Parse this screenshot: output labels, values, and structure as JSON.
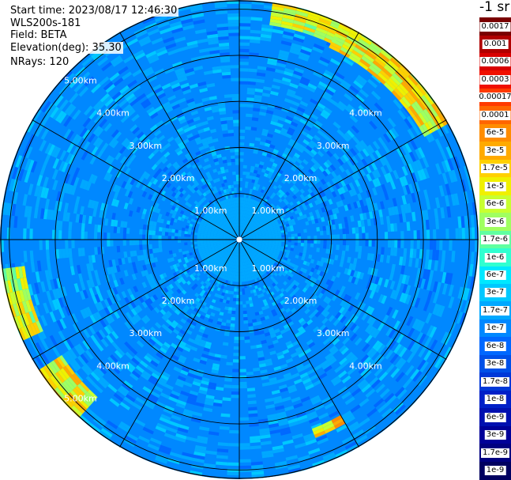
{
  "header": {
    "start_time": "Start time: 2023/08/17 12:46:30",
    "instrument": "WLS200s-181",
    "field": "Field: BETA",
    "elevation": "Elevation(deg): 35.30",
    "nrays": "NRays: 120"
  },
  "chart_data": {
    "type": "heatmap",
    "projection": "polar-ppi",
    "field": "BETA",
    "elevation_deg": 35.3,
    "n_rays": 120,
    "range_max_km": 5.2,
    "range_rings_km": [
      1,
      2,
      3,
      4,
      5
    ],
    "ring_labels_inner": [
      "1.00km",
      "2.00km",
      "3.00km",
      "4.00km",
      "5.00km"
    ],
    "ring_labels_right": [
      "1.00km",
      "2.00km",
      "3.00km",
      "4.00km"
    ],
    "spokes_deg": [
      0,
      30,
      60,
      90,
      120,
      150,
      180,
      210,
      240,
      270,
      300,
      330
    ],
    "colorbar": {
      "unit_label": "-1 sr",
      "labels": [
        "0.0017",
        "0.001",
        "0.0006",
        "0.0003",
        "0.00017",
        "0.0001",
        "6e-5",
        "3e-5",
        "1.7e-5",
        "1e-5",
        "6e-6",
        "3e-6",
        "1.7e-6",
        "1e-6",
        "6e-7",
        "3e-7",
        "1.7e-7",
        "1e-7",
        "6e-8",
        "3e-8",
        "1.7e-8",
        "1e-8",
        "6e-9",
        "3e-9",
        "1.7e-9",
        "1e-9"
      ],
      "colors": [
        "#7a0000",
        "#b00000",
        "#d80000",
        "#f01000",
        "#ff3a00",
        "#ff6600",
        "#ff8c00",
        "#ffaa00",
        "#ffd000",
        "#f0f000",
        "#c8ff30",
        "#a0ff60",
        "#60ffa0",
        "#30ffd0",
        "#00e8ff",
        "#00c8ff",
        "#00a8ff",
        "#0088ff",
        "#0068ff",
        "#0050e8",
        "#0038d8",
        "#0020c8",
        "#0010b0",
        "#000098",
        "#000080",
        "#000060"
      ]
    },
    "background_level": "1e-7",
    "near_range_level": "1.7e-7",
    "enhanced_sectors": [
      {
        "azimuth_deg": [
          8,
          25
        ],
        "range_km": [
          4.7,
          5.2
        ],
        "level": "6e-6"
      },
      {
        "azimuth_deg": [
          25,
          60
        ],
        "range_km": [
          4.6,
          5.2
        ],
        "level": "1e-5"
      },
      {
        "azimuth_deg": [
          245,
          262
        ],
        "range_km": [
          4.7,
          5.2
        ],
        "level": "6e-6"
      },
      {
        "azimuth_deg": [
          222,
          236
        ],
        "range_km": [
          4.6,
          5.2
        ],
        "level": "1e-5"
      },
      {
        "azimuth_deg": [
          150,
          158
        ],
        "range_km": [
          4.4,
          4.6
        ],
        "level": "1.7e-5"
      }
    ]
  }
}
